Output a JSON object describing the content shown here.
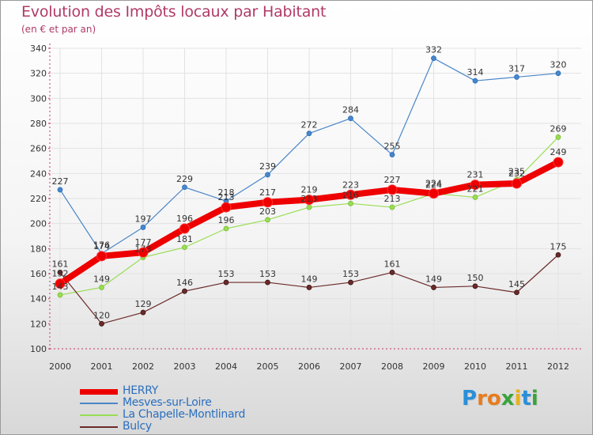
{
  "header": {
    "title": "Evolution des Impôts locaux par Habitant",
    "subtitle": "(en € et par an)"
  },
  "logo": {
    "letters": [
      "P",
      "r",
      "o",
      "x",
      "i",
      "t",
      "i"
    ],
    "colors": [
      "#2a8fd8",
      "#e77c1e",
      "#e77c1e",
      "#3aa33a",
      "#e7b21e",
      "#2a8fd8",
      "#3aa33a"
    ]
  },
  "chart_data": {
    "type": "line",
    "x": [
      "2000",
      "2001",
      "2002",
      "2003",
      "2004",
      "2005",
      "2006",
      "2007",
      "2008",
      "2009",
      "2010",
      "2011",
      "2012"
    ],
    "ylim": [
      100,
      340
    ],
    "yticks": [
      100,
      120,
      140,
      160,
      180,
      200,
      220,
      240,
      260,
      280,
      300,
      320,
      340
    ],
    "grid": true,
    "legend_position": "bottom-left",
    "series": [
      {
        "name": "HERRY",
        "color": "#ee0000",
        "values": [
          152,
          174,
          177,
          196,
          213,
          217,
          219,
          223,
          227,
          224,
          231,
          232,
          249
        ],
        "labels": [
          "152",
          "174",
          "177",
          "196",
          "213",
          "217",
          "219",
          "223",
          "227",
          "224",
          "231",
          "232",
          "249"
        ]
      },
      {
        "name": "Mesves-sur-Loire",
        "color": "#4a86c8",
        "values": [
          227,
          176,
          197,
          229,
          218,
          239,
          272,
          284,
          255,
          332,
          314,
          317,
          320
        ],
        "labels": [
          "227",
          "176",
          "197",
          "229",
          "218",
          "239",
          "272",
          "284",
          "255",
          "332",
          "314",
          "317",
          "320"
        ]
      },
      {
        "name": "La Chapelle-Montlinard",
        "color": "#99dd55",
        "values": [
          143,
          149,
          173,
          181,
          196,
          203,
          213,
          216,
          213,
          224,
          221,
          235,
          269
        ],
        "labels": [
          "143",
          "149",
          "173",
          "181",
          "196",
          "203",
          "213",
          "216",
          "213",
          "224",
          "221",
          "235",
          "269"
        ]
      },
      {
        "name": "Bulcy",
        "color": "#6b2a2a",
        "values": [
          161,
          120,
          129,
          146,
          153,
          153,
          149,
          153,
          161,
          149,
          150,
          145,
          175
        ],
        "labels": [
          "161",
          "120",
          "129",
          "146",
          "153",
          "153",
          "149",
          "153",
          "161",
          "149",
          "150",
          "145",
          "175"
        ]
      }
    ]
  }
}
